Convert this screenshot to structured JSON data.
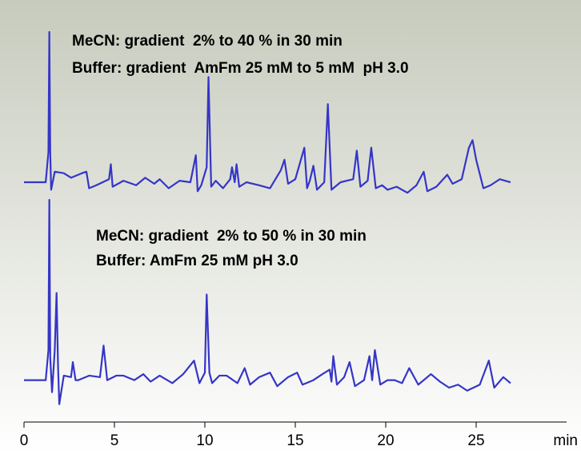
{
  "chart_data": [
    {
      "type": "line",
      "annotations": [
        "MeCN: gradient  2% to 40 % in 30 min",
        "Buffer: gradient  AmFm 25 mM to 5 mM  pH 3.0"
      ],
      "x": [
        0,
        1.2,
        1.35,
        1.4,
        1.45,
        1.5,
        1.7,
        2.2,
        2.6,
        3.2,
        3.45,
        3.6,
        4.0,
        4.7,
        4.8,
        4.9,
        5.5,
        6.2,
        6.7,
        7.2,
        7.5,
        8.0,
        8.6,
        9.2,
        9.5,
        9.6,
        9.8,
        10.1,
        10.2,
        10.35,
        10.6,
        11.0,
        11.4,
        11.5,
        11.65,
        11.75,
        11.9,
        12.3,
        13.0,
        13.6,
        14.2,
        14.4,
        14.6,
        15.0,
        15.5,
        15.65,
        15.8,
        16.0,
        16.2,
        16.6,
        16.8,
        17.0,
        17.5,
        18.2,
        18.4,
        18.6,
        19.0,
        19.2,
        19.45,
        19.8,
        20.1,
        20.6,
        21.2,
        21.7,
        22.1,
        22.3,
        22.8,
        23.4,
        23.7,
        24.2,
        24.6,
        24.8,
        25.0,
        25.4,
        25.8,
        26.3,
        26.9
      ],
      "values": [
        0,
        0,
        20,
        100,
        20,
        -5,
        7,
        6,
        3,
        6,
        7,
        -4,
        -2,
        2,
        12,
        -3,
        1,
        -2,
        3,
        -1,
        2,
        -4,
        1,
        0,
        18,
        -6,
        -2,
        10,
        70,
        -3,
        1,
        -4,
        2,
        10,
        0,
        12,
        -3,
        0,
        -2,
        -4,
        8,
        15,
        -1,
        2,
        23,
        -4,
        1,
        11,
        -5,
        0,
        52,
        -5,
        0,
        2,
        21,
        -3,
        1,
        23,
        -4,
        -2,
        -5,
        -3,
        -7,
        -2,
        7,
        -6,
        -3,
        5,
        -1,
        2,
        23,
        28,
        15,
        -4,
        -2,
        2,
        0
      ],
      "color": "#3535c8",
      "xlim": [
        0,
        30
      ],
      "ylim": [
        -10,
        100
      ]
    },
    {
      "type": "line",
      "annotations": [
        "MeCN: gradient  2% to 50 % in 30 min",
        "Buffer: AmFm 25 mM pH 3.0"
      ],
      "x": [
        0,
        1.2,
        1.35,
        1.4,
        1.45,
        1.55,
        1.7,
        1.8,
        1.88,
        1.95,
        2.2,
        2.6,
        2.7,
        2.85,
        3.0,
        3.6,
        4.2,
        4.4,
        4.6,
        5.1,
        5.5,
        6.1,
        6.6,
        7.0,
        7.5,
        8.2,
        8.8,
        9.4,
        9.7,
        10.0,
        10.1,
        10.25,
        10.4,
        10.8,
        11.2,
        11.8,
        12.2,
        12.5,
        13.0,
        13.6,
        14.0,
        14.6,
        15.1,
        15.4,
        16.0,
        16.5,
        16.9,
        17.0,
        17.1,
        17.3,
        17.7,
        18.0,
        18.3,
        18.8,
        19.1,
        19.25,
        19.4,
        19.7,
        20.1,
        20.5,
        20.9,
        21.3,
        21.8,
        22.5,
        23.0,
        23.5,
        24.0,
        24.5,
        25.2,
        25.7,
        26.0,
        26.5,
        26.9
      ],
      "values": [
        0,
        0,
        20,
        120,
        15,
        -8,
        20,
        58,
        10,
        -16,
        3,
        2,
        12,
        0,
        0,
        3,
        2,
        23,
        0,
        3,
        3,
        0,
        4,
        -1,
        3,
        -2,
        4,
        13,
        -2,
        5,
        57,
        5,
        -2,
        3,
        3,
        -2,
        8,
        -3,
        2,
        5,
        -4,
        2,
        5,
        -3,
        0,
        4,
        7,
        -1,
        16,
        -3,
        2,
        12,
        -4,
        0,
        16,
        0,
        20,
        -3,
        0,
        0,
        -2,
        8,
        -3,
        4,
        -1,
        -5,
        -3,
        -7,
        -3,
        13,
        -5,
        2,
        -2
      ],
      "color": "#3535c8",
      "xlim": [
        0,
        30
      ],
      "ylim": [
        -20,
        120
      ],
      "xticks": [
        0,
        5,
        10,
        15,
        20,
        25
      ],
      "xlabel": "min"
    }
  ]
}
